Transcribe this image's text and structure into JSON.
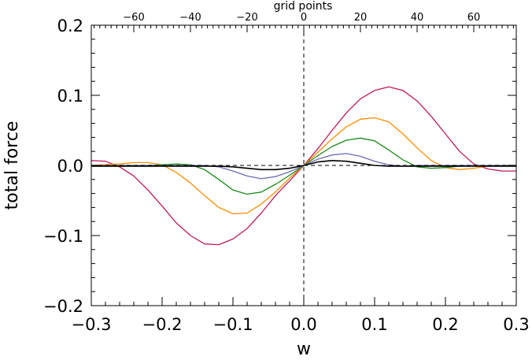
{
  "chart_data": {
    "type": "line",
    "title": "",
    "xlabel": "w",
    "ylabel": "total force",
    "top_axis_label": "grid points",
    "xlim": [
      -0.3,
      0.3
    ],
    "ylim": [
      -0.2,
      0.2
    ],
    "x_ticks": [
      -0.3,
      -0.2,
      -0.1,
      0.0,
      0.1,
      0.2,
      0.3
    ],
    "x_tick_labels": [
      "−0.3",
      "−0.2",
      "−0.1",
      "0.0",
      "0.1",
      "0.2",
      "0.3"
    ],
    "y_ticks": [
      -0.2,
      -0.1,
      0.0,
      0.1,
      0.2
    ],
    "y_tick_labels": [
      "−0.2",
      "−0.1",
      "0.0",
      "0.1",
      "0.2"
    ],
    "top_ticks": [
      -60,
      -40,
      -20,
      0,
      20,
      40,
      60
    ],
    "top_tick_labels": [
      "−60",
      "−40",
      "−20",
      "0",
      "20",
      "40",
      "60"
    ],
    "top_axis_range": [
      -75,
      75
    ],
    "reference_lines": {
      "vertical_x": 0.0,
      "horizontal_y": 0.0
    },
    "series": [
      {
        "name": "magenta",
        "color": "#c2185b",
        "x": [
          -0.3,
          -0.28,
          -0.26,
          -0.24,
          -0.22,
          -0.2,
          -0.18,
          -0.16,
          -0.14,
          -0.12,
          -0.1,
          -0.08,
          -0.06,
          -0.04,
          -0.02,
          0.0,
          0.02,
          0.04,
          0.06,
          0.08,
          0.1,
          0.12,
          0.14,
          0.16,
          0.18,
          0.2,
          0.22,
          0.24,
          0.26,
          0.28,
          0.3
        ],
        "y": [
          0.007,
          0.006,
          -0.002,
          -0.015,
          -0.035,
          -0.058,
          -0.082,
          -0.1,
          -0.112,
          -0.113,
          -0.105,
          -0.09,
          -0.068,
          -0.043,
          -0.022,
          0.0,
          0.024,
          0.05,
          0.075,
          0.095,
          0.107,
          0.112,
          0.107,
          0.092,
          0.07,
          0.045,
          0.02,
          0.002,
          -0.005,
          -0.008,
          -0.008
        ]
      },
      {
        "name": "orange",
        "color": "#ff8c00",
        "x": [
          -0.3,
          -0.26,
          -0.24,
          -0.22,
          -0.2,
          -0.18,
          -0.16,
          -0.14,
          -0.12,
          -0.1,
          -0.08,
          -0.06,
          -0.04,
          -0.02,
          0.0,
          0.02,
          0.04,
          0.06,
          0.08,
          0.1,
          0.12,
          0.14,
          0.16,
          0.18,
          0.2,
          0.22,
          0.24,
          0.26,
          0.3
        ],
        "y": [
          0.0,
          0.002,
          0.004,
          0.004,
          0.001,
          -0.01,
          -0.025,
          -0.043,
          -0.06,
          -0.069,
          -0.068,
          -0.055,
          -0.038,
          -0.018,
          0.0,
          0.019,
          0.038,
          0.055,
          0.066,
          0.068,
          0.062,
          0.045,
          0.025,
          0.007,
          -0.003,
          -0.006,
          -0.004,
          -0.001,
          0.0
        ]
      },
      {
        "name": "green",
        "color": "#1a8a1a",
        "x": [
          -0.3,
          -0.22,
          -0.2,
          -0.18,
          -0.16,
          -0.14,
          -0.12,
          -0.1,
          -0.08,
          -0.06,
          -0.04,
          -0.02,
          0.0,
          0.02,
          0.04,
          0.06,
          0.08,
          0.1,
          0.12,
          0.14,
          0.16,
          0.18,
          0.2,
          0.22,
          0.24,
          0.3
        ],
        "y": [
          0.0,
          0.0,
          0.001,
          0.002,
          0.001,
          -0.006,
          -0.02,
          -0.035,
          -0.041,
          -0.038,
          -0.027,
          -0.014,
          0.0,
          0.014,
          0.027,
          0.036,
          0.039,
          0.035,
          0.022,
          0.008,
          -0.002,
          -0.004,
          -0.003,
          -0.001,
          0.0,
          0.0
        ]
      },
      {
        "name": "blue",
        "color": "#6b6bb5",
        "x": [
          -0.3,
          -0.14,
          -0.12,
          -0.1,
          -0.08,
          -0.06,
          -0.04,
          -0.02,
          0.0,
          0.02,
          0.04,
          0.06,
          0.08,
          0.1,
          0.12,
          0.14,
          0.16,
          0.3
        ],
        "y": [
          0.0,
          0.0,
          -0.002,
          -0.008,
          -0.015,
          -0.019,
          -0.016,
          -0.009,
          0.0,
          0.009,
          0.015,
          0.017,
          0.013,
          0.006,
          0.001,
          -0.001,
          0.0,
          0.0
        ]
      },
      {
        "name": "black",
        "color": "#000000",
        "x": [
          -0.3,
          -0.12,
          -0.1,
          -0.08,
          -0.06,
          -0.04,
          -0.02,
          0.0,
          0.02,
          0.04,
          0.06,
          0.08,
          0.1,
          0.12,
          0.3
        ],
        "y": [
          -0.001,
          -0.001,
          -0.002,
          -0.004,
          -0.006,
          -0.006,
          -0.004,
          0.0,
          0.005,
          0.007,
          0.006,
          0.003,
          0.0,
          -0.001,
          -0.001
        ]
      }
    ]
  }
}
